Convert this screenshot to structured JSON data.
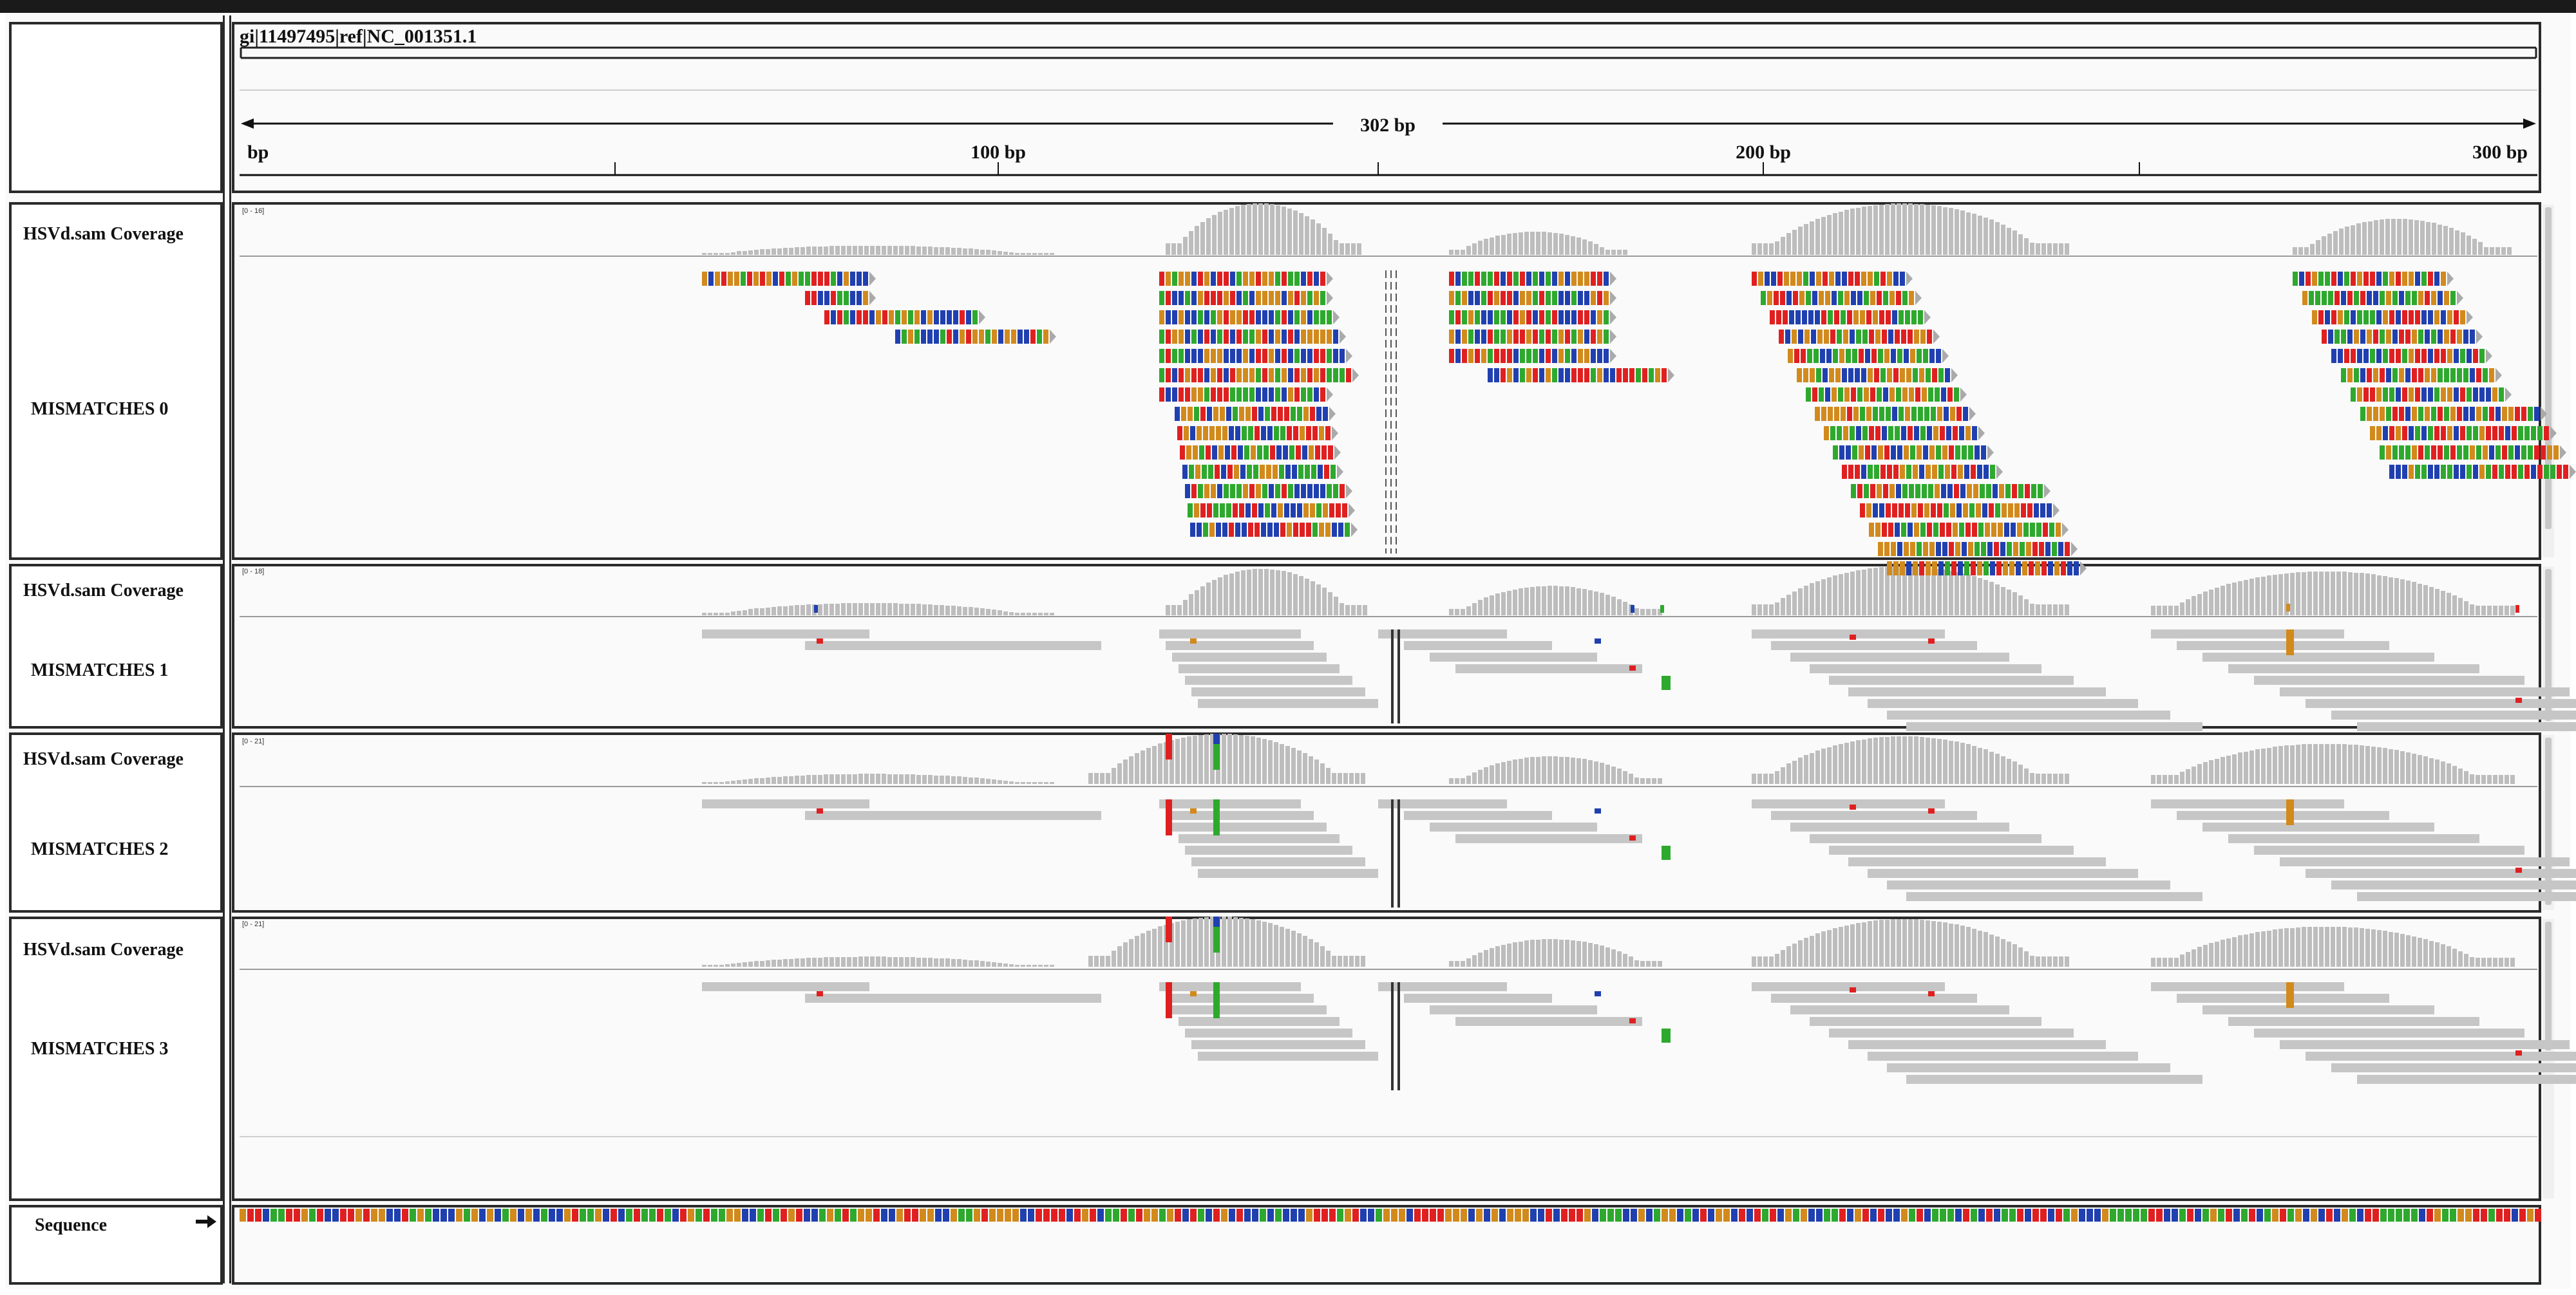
{
  "locus": "gi|11497495|ref|NC_001351.1",
  "ruler": {
    "span_label": "302 bp",
    "ticks": [
      "bp",
      "100 bp",
      "200 bp",
      "300 bp"
    ]
  },
  "tracks": [
    {
      "coverage_label": "HSVd.sam Coverage",
      "coverage_range": "[0 - 16]",
      "alignment_label": "MISMATCHES 0"
    },
    {
      "coverage_label": "HSVd.sam Coverage",
      "coverage_range": "[0 - 18]",
      "alignment_label": "MISMATCHES 1"
    },
    {
      "coverage_label": "HSVd.sam Coverage",
      "coverage_range": "[0 - 21]",
      "alignment_label": "MISMATCHES 2"
    },
    {
      "coverage_label": "HSVd.sam Coverage",
      "coverage_range": "[0 - 21]",
      "alignment_label": "MISMATCHES 3"
    }
  ],
  "sequence": {
    "label": "Sequence",
    "strand_icon": "right-arrow-icon"
  },
  "colors": {
    "A": "#2ea92e",
    "C": "#2040b0",
    "G": "#d28a1c",
    "T": "#e02020",
    "grey": "#c6c6c6",
    "coverage": "#bdbdbd",
    "green_light": "#7ed957",
    "orange_light": "#d28a1c"
  }
}
